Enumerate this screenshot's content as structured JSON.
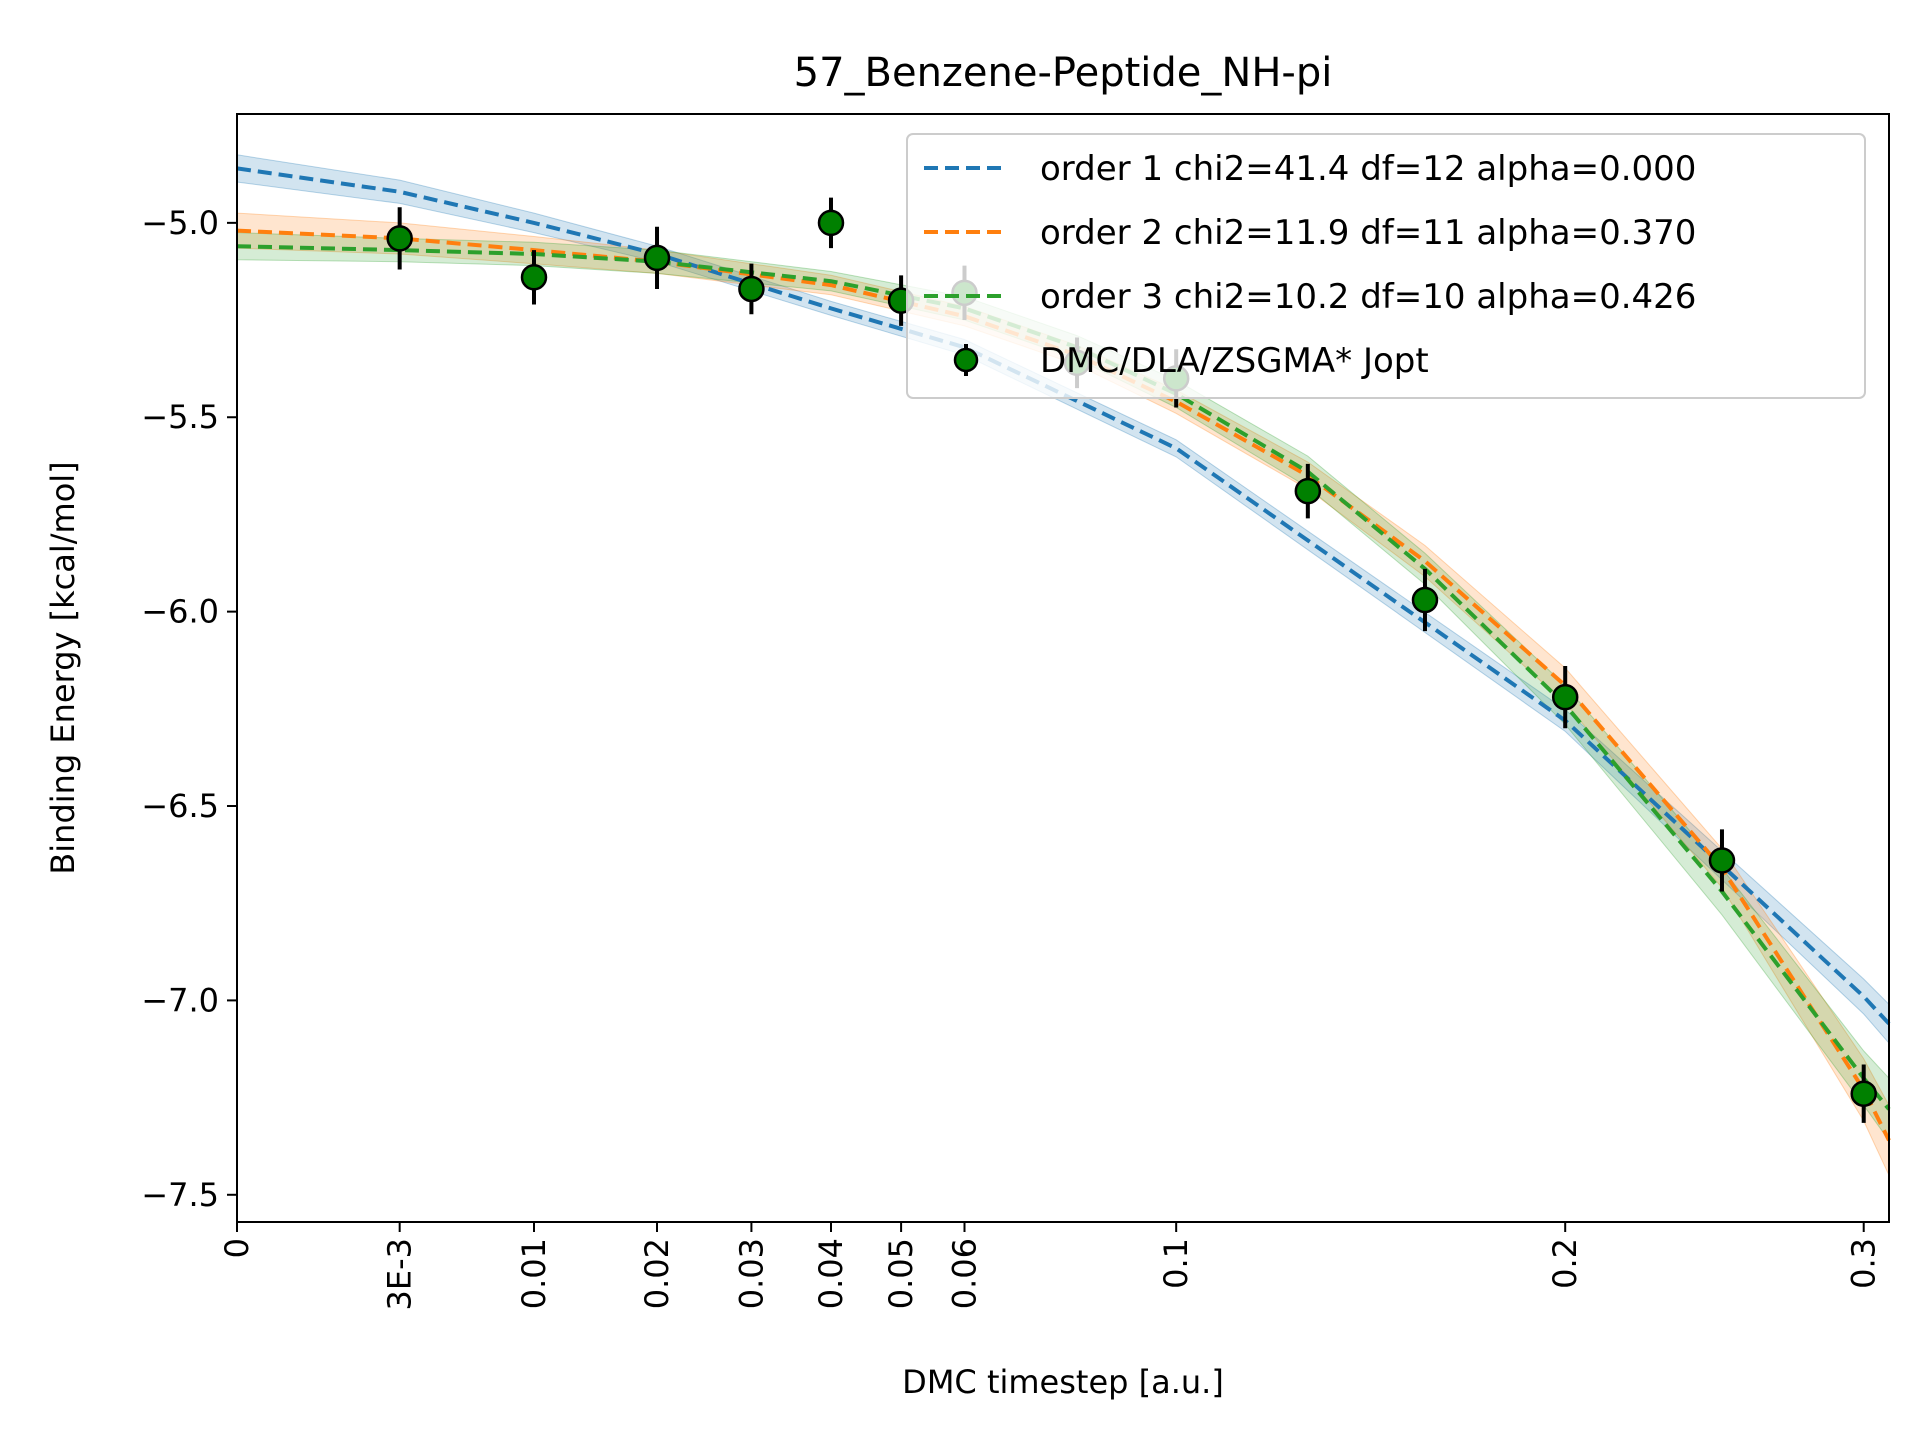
{
  "chart_data": {
    "type": "scatter",
    "title": "57_Benzene-Peptide_NH-pi",
    "xlabel": "DMC timestep [a.u.]",
    "ylabel": "Binding Energy [kcal/mol]",
    "xlim": [
      0,
      0.3094
    ],
    "ylim": [
      -7.57,
      -4.72
    ],
    "x_ticks": [
      0,
      0.003,
      0.01,
      0.02,
      0.03,
      0.04,
      0.05,
      0.06,
      0.1,
      0.2,
      0.3
    ],
    "x_tick_labels": [
      "0",
      "3E-3",
      "0.01",
      "0.02",
      "0.03",
      "0.04",
      "0.05",
      "0.06",
      "0.1",
      "0.2",
      "0.3"
    ],
    "y_ticks": [
      -5.0,
      -5.5,
      -6.0,
      -6.5,
      -7.0,
      -7.5
    ],
    "y_tick_labels": [
      "−5.0",
      "−5.5",
      "−6.0",
      "−6.5",
      "−7.0",
      "−7.5"
    ],
    "x_axis_scale": "sqrt",
    "grid": false,
    "legend_position": "top-right",
    "series": [
      {
        "name": "order 1 chi2=41.4 df=12 alpha=0.000",
        "style": "dashed-line-with-band",
        "color": "#1f77b4",
        "x": [
          0,
          0.003,
          0.01,
          0.02,
          0.04,
          0.06,
          0.1,
          0.2,
          0.3,
          0.3094
        ],
        "y": [
          -4.86,
          -4.92,
          -5.0,
          -5.08,
          -5.22,
          -5.32,
          -5.58,
          -6.28,
          -6.99,
          -7.06
        ],
        "band": [
          0.035,
          0.03,
          0.025,
          0.02,
          0.018,
          0.02,
          0.022,
          0.028,
          0.045,
          0.05
        ]
      },
      {
        "name": "order 2 chi2=11.9 df=11 alpha=0.370",
        "style": "dashed-line-with-band",
        "color": "#ff7f0e",
        "x": [
          0,
          0.003,
          0.01,
          0.02,
          0.04,
          0.06,
          0.08,
          0.1,
          0.13,
          0.16,
          0.2,
          0.25,
          0.3,
          0.3094
        ],
        "y": [
          -5.02,
          -5.04,
          -5.07,
          -5.1,
          -5.16,
          -5.24,
          -5.34,
          -5.46,
          -5.65,
          -5.87,
          -6.19,
          -6.66,
          -7.23,
          -7.36
        ],
        "band": [
          0.045,
          0.04,
          0.035,
          0.03,
          0.025,
          0.025,
          0.025,
          0.03,
          0.035,
          0.04,
          0.045,
          0.05,
          0.08,
          0.09
        ]
      },
      {
        "name": "order 3 chi2=10.2 df=10 alpha=0.426",
        "style": "dashed-line-with-band",
        "color": "#2ca02c",
        "x": [
          0,
          0.003,
          0.01,
          0.02,
          0.04,
          0.06,
          0.08,
          0.1,
          0.13,
          0.16,
          0.2,
          0.25,
          0.3,
          0.3094
        ],
        "y": [
          -5.06,
          -5.07,
          -5.08,
          -5.1,
          -5.15,
          -5.22,
          -5.32,
          -5.44,
          -5.64,
          -5.89,
          -6.24,
          -6.72,
          -7.2,
          -7.28
        ],
        "band": [
          0.035,
          0.03,
          0.03,
          0.03,
          0.025,
          0.03,
          0.03,
          0.035,
          0.04,
          0.04,
          0.05,
          0.06,
          0.07,
          0.08
        ]
      },
      {
        "name": "DMC/DLA/ZSGMA* Jopt",
        "style": "points-with-errorbars",
        "color": "#008000",
        "x": [
          0.003,
          0.01,
          0.02,
          0.03,
          0.04,
          0.05,
          0.06,
          0.08,
          0.1,
          0.13,
          0.16,
          0.2,
          0.25,
          0.3
        ],
        "y": [
          -5.04,
          -5.14,
          -5.09,
          -5.17,
          -5.0,
          -5.2,
          -5.18,
          -5.36,
          -5.4,
          -5.69,
          -5.97,
          -6.22,
          -6.64,
          -7.24
        ],
        "yerr": [
          0.08,
          0.07,
          0.08,
          0.065,
          0.065,
          0.065,
          0.07,
          0.065,
          0.075,
          0.07,
          0.08,
          0.08,
          0.08,
          0.075
        ]
      }
    ]
  }
}
